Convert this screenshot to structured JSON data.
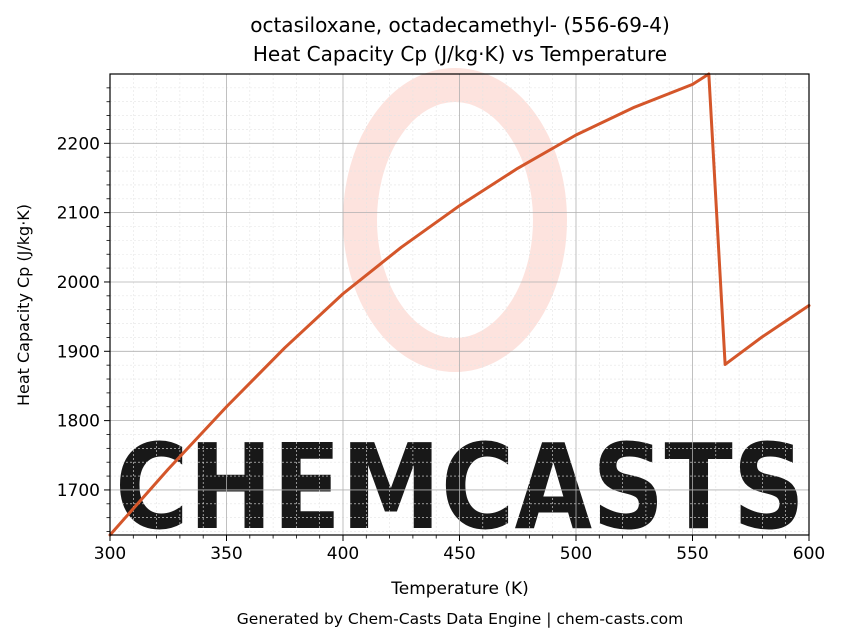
{
  "chart_data": {
    "type": "line",
    "title_line1": "octasiloxane, octadecamethyl- (556-69-4)",
    "title_line2": "Heat Capacity Cp (J/kg·K) vs Temperature",
    "xlabel": "Temperature (K)",
    "ylabel": "Heat Capacity Cp (J/kg·K)",
    "xlim": [
      300,
      600
    ],
    "ylim": [
      1635,
      2300
    ],
    "xticks": [
      300,
      350,
      400,
      450,
      500,
      550,
      600
    ],
    "yticks": [
      1700,
      1800,
      1900,
      2000,
      2100,
      2200
    ],
    "grid": true,
    "line_color": "#d4562a",
    "series": [
      {
        "x": [
          300,
          325,
          350,
          375,
          400,
          425,
          450,
          475,
          500,
          525,
          550,
          557,
          564,
          580,
          600
        ],
        "values": [
          1635,
          1730,
          1820,
          1905,
          1983,
          2050,
          2110,
          2164,
          2212,
          2252,
          2285,
          2300,
          1881,
          1921,
          1966
        ]
      }
    ]
  },
  "watermark": {
    "text": "CHEMCASTS",
    "color": "#fde0da"
  },
  "footer": "Generated by Chem-Casts Data Engine | chem-casts.com"
}
